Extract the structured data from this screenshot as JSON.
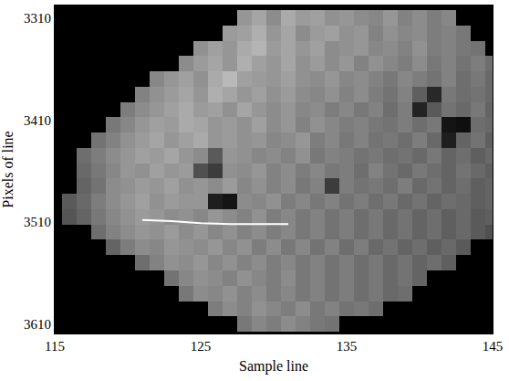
{
  "chart_data": {
    "type": "heatmap",
    "x_label": "Sample line",
    "y_label": "Pixels of line",
    "color": "gray",
    "xlim": [
      115,
      145
    ],
    "ylim": [
      3619,
      3298
    ],
    "xticks": [
      115,
      125,
      135,
      145
    ],
    "yticks": [
      3310,
      3410,
      3510,
      3610
    ],
    "zlim": [
      0,
      255
    ],
    "x": [
      115,
      116,
      117,
      118,
      119,
      120,
      121,
      122,
      123,
      124,
      125,
      126,
      127,
      128,
      129,
      130,
      131,
      132,
      133,
      134,
      135,
      136,
      137,
      138,
      139,
      140,
      141,
      142,
      143,
      144,
      145
    ],
    "y": [
      3310,
      3325,
      3340,
      3355,
      3370,
      3385,
      3400,
      3415,
      3430,
      3445,
      3460,
      3475,
      3490,
      3505,
      3520,
      3535,
      3550,
      3565,
      3580,
      3595,
      3610
    ],
    "cells": [
      [
        0,
        0,
        0,
        0,
        0,
        0,
        0,
        0,
        0,
        0,
        0,
        0,
        0,
        150,
        165,
        140,
        170,
        155,
        160,
        145,
        150,
        140,
        135,
        150,
        130,
        140,
        125,
        135,
        0,
        0,
        0
      ],
      [
        0,
        0,
        0,
        0,
        0,
        0,
        0,
        0,
        0,
        0,
        0,
        0,
        155,
        160,
        175,
        150,
        165,
        140,
        155,
        160,
        145,
        150,
        130,
        145,
        135,
        140,
        125,
        130,
        120,
        0,
        0
      ],
      [
        0,
        0,
        0,
        0,
        0,
        0,
        0,
        0,
        0,
        0,
        145,
        160,
        150,
        170,
        180,
        155,
        165,
        150,
        160,
        140,
        145,
        150,
        135,
        140,
        130,
        145,
        125,
        130,
        120,
        115,
        0
      ],
      [
        0,
        0,
        0,
        0,
        0,
        0,
        0,
        0,
        0,
        140,
        155,
        165,
        150,
        175,
        160,
        150,
        165,
        145,
        155,
        140,
        150,
        130,
        145,
        135,
        125,
        140,
        120,
        130,
        115,
        125,
        110
      ],
      [
        0,
        0,
        0,
        0,
        0,
        0,
        0,
        135,
        150,
        160,
        145,
        170,
        185,
        160,
        155,
        150,
        160,
        145,
        140,
        150,
        135,
        140,
        130,
        120,
        135,
        125,
        115,
        130,
        110,
        120,
        105
      ],
      [
        0,
        0,
        0,
        0,
        0,
        0,
        130,
        145,
        155,
        165,
        150,
        175,
        165,
        150,
        160,
        145,
        155,
        140,
        135,
        145,
        130,
        140,
        125,
        115,
        130,
        95,
        40,
        120,
        110,
        115,
        105
      ],
      [
        0,
        0,
        0,
        0,
        0,
        125,
        140,
        150,
        160,
        170,
        155,
        160,
        145,
        165,
        150,
        140,
        150,
        135,
        140,
        125,
        135,
        120,
        130,
        110,
        125,
        35,
        90,
        115,
        105,
        120,
        100
      ],
      [
        0,
        0,
        0,
        0,
        120,
        135,
        150,
        160,
        155,
        170,
        165,
        150,
        155,
        145,
        160,
        140,
        150,
        130,
        145,
        135,
        125,
        130,
        120,
        115,
        125,
        110,
        120,
        20,
        15,
        110,
        105
      ],
      [
        0,
        0,
        0,
        115,
        130,
        145,
        155,
        165,
        150,
        160,
        170,
        150,
        155,
        145,
        150,
        135,
        140,
        150,
        125,
        135,
        120,
        130,
        115,
        120,
        110,
        125,
        105,
        30,
        100,
        115,
        95
      ],
      [
        0,
        0,
        110,
        125,
        140,
        150,
        160,
        155,
        165,
        150,
        140,
        90,
        150,
        145,
        135,
        140,
        130,
        145,
        120,
        130,
        125,
        115,
        120,
        110,
        115,
        105,
        120,
        100,
        110,
        95,
        105
      ],
      [
        0,
        0,
        105,
        120,
        135,
        150,
        145,
        160,
        150,
        155,
        80,
        60,
        145,
        140,
        150,
        130,
        140,
        125,
        135,
        120,
        125,
        110,
        130,
        115,
        105,
        120,
        110,
        100,
        115,
        105,
        95
      ],
      [
        0,
        0,
        100,
        115,
        140,
        145,
        155,
        150,
        160,
        145,
        150,
        140,
        155,
        135,
        145,
        130,
        140,
        120,
        130,
        60,
        125,
        115,
        120,
        110,
        125,
        105,
        115,
        100,
        110,
        95,
        100
      ],
      [
        0,
        90,
        105,
        125,
        140,
        150,
        160,
        145,
        155,
        150,
        150,
        30,
        20,
        140,
        135,
        145,
        125,
        135,
        120,
        130,
        115,
        125,
        110,
        120,
        105,
        115,
        100,
        110,
        105,
        95,
        100
      ],
      [
        0,
        85,
        100,
        120,
        135,
        145,
        155,
        150,
        140,
        145,
        135,
        150,
        140,
        130,
        145,
        125,
        135,
        120,
        130,
        115,
        125,
        110,
        120,
        105,
        115,
        100,
        110,
        95,
        105,
        90,
        95
      ],
      [
        0,
        0,
        0,
        110,
        130,
        140,
        150,
        145,
        155,
        140,
        150,
        135,
        145,
        130,
        140,
        125,
        135,
        120,
        130,
        115,
        125,
        110,
        120,
        105,
        115,
        100,
        110,
        95,
        105,
        90,
        80
      ],
      [
        0,
        0,
        0,
        0,
        100,
        125,
        140,
        135,
        150,
        145,
        140,
        150,
        135,
        145,
        125,
        140,
        120,
        135,
        115,
        130,
        110,
        125,
        105,
        115,
        100,
        110,
        95,
        105,
        90,
        0,
        0
      ],
      [
        0,
        0,
        0,
        0,
        0,
        0,
        110,
        130,
        145,
        140,
        150,
        135,
        145,
        130,
        140,
        125,
        135,
        120,
        130,
        115,
        125,
        110,
        120,
        105,
        115,
        100,
        110,
        95,
        0,
        0,
        0
      ],
      [
        0,
        0,
        0,
        0,
        0,
        0,
        0,
        0,
        115,
        135,
        145,
        140,
        130,
        145,
        135,
        125,
        140,
        120,
        130,
        115,
        125,
        110,
        120,
        105,
        115,
        100,
        0,
        0,
        0,
        0,
        0
      ],
      [
        0,
        0,
        0,
        0,
        0,
        0,
        0,
        0,
        0,
        120,
        140,
        135,
        145,
        130,
        140,
        125,
        135,
        120,
        130,
        115,
        125,
        110,
        120,
        105,
        110,
        0,
        0,
        0,
        0,
        0,
        0
      ],
      [
        0,
        0,
        0,
        0,
        0,
        0,
        0,
        0,
        0,
        0,
        0,
        125,
        140,
        130,
        145,
        135,
        125,
        140,
        120,
        130,
        115,
        120,
        110,
        0,
        0,
        0,
        0,
        0,
        0,
        0,
        0
      ],
      [
        0,
        0,
        0,
        0,
        0,
        0,
        0,
        0,
        0,
        0,
        0,
        0,
        0,
        120,
        135,
        125,
        140,
        130,
        120,
        115,
        0,
        0,
        0,
        0,
        0,
        0,
        0,
        0,
        0,
        0,
        0
      ]
    ],
    "series": [
      {
        "type": "line",
        "color": "#ffffff",
        "x": [
          121,
          123,
          125,
          127,
          129,
          131
        ],
        "y": [
          3508,
          3509,
          3511,
          3512,
          3512,
          3512
        ]
      }
    ]
  }
}
